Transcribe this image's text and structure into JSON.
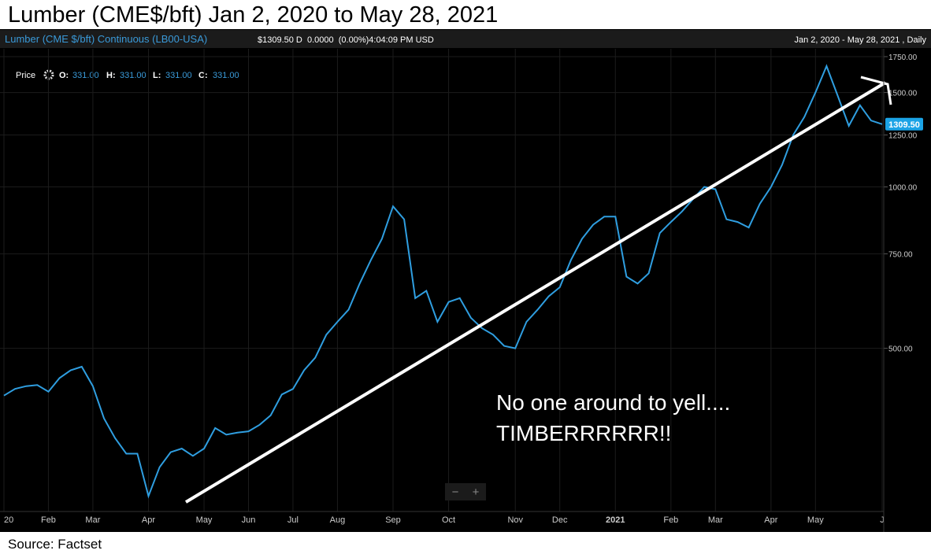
{
  "chart_data": {
    "type": "line",
    "title": "Lumber (CME$/bft) Jan 2, 2020 to May 28, 2021",
    "header_price": "$1309.50 D  0.0000  (0.00%)4:04:09 PM USD",
    "date_range": "Jan 2, 2020 - May 28, 2021 , Daily",
    "ohlc": {
      "label": "Price",
      "open_label": "O:",
      "open": "331.00",
      "high_label": "H:",
      "high": "331.00",
      "low_label": "L:",
      "low": "331.00",
      "close_label": "C:",
      "close": "331.00"
    },
    "annotation": [
      "No one around to yell....",
      "TIMBERRRRRR!!"
    ],
    "zoom": [
      "−",
      "+"
    ],
    "source": "Source: Factset",
    "last_price_label": "1309.50",
    "log_scale": true,
    "grid": true,
    "categories": [
      "20",
      null,
      null,
      null,
      "Feb",
      null,
      null,
      null,
      "Mar",
      null,
      null,
      null,
      null,
      "Apr",
      null,
      null,
      null,
      null,
      "May",
      null,
      null,
      null,
      "Jun",
      null,
      null,
      null,
      "Jul",
      null,
      null,
      null,
      "Aug",
      null,
      null,
      null,
      null,
      "Sep",
      null,
      null,
      null,
      null,
      "Oct",
      null,
      null,
      null,
      null,
      null,
      "Nov",
      null,
      null,
      null,
      "Dec",
      null,
      null,
      null,
      null,
      "2021",
      null,
      null,
      null,
      null,
      "Feb",
      null,
      null,
      null,
      "Mar",
      null,
      null,
      null,
      null,
      "Apr",
      null,
      null,
      null,
      "May",
      null,
      null,
      null,
      null,
      null,
      "J"
    ],
    "series": [
      {
        "name": "Lumber (CME $/bft) Continuous (LB00-USA)",
        "color": "#2f9ee0",
        "values": [
          408,
          420,
          425,
          427,
          415,
          440,
          455,
          462,
          425,
          370,
          340,
          318,
          318,
          265,
          300,
          320,
          325,
          315,
          325,
          355,
          345,
          348,
          350,
          360,
          375,
          410,
          420,
          455,
          480,
          530,
          560,
          590,
          660,
          730,
          800,
          920,
          870,
          620,
          640,
          560,
          610,
          620,
          570,
          545,
          530,
          505,
          500,
          560,
          590,
          625,
          650,
          730,
          800,
          850,
          880,
          880,
          680,
          660,
          690,
          820,
          860,
          900,
          950,
          1000,
          990,
          870,
          860,
          840,
          930,
          1000,
          1100,
          1250,
          1350,
          1500,
          1680,
          1480,
          1300,
          1420,
          1330,
          1309.5
        ]
      }
    ],
    "ylim": [
      248,
      1810
    ],
    "yticks": [
      {
        "value": 500,
        "label": "500.00"
      },
      {
        "value": 750,
        "label": "750.00"
      },
      {
        "value": 1000,
        "label": "1000.00"
      },
      {
        "value": 1250,
        "label": "1250.00"
      },
      {
        "value": 1500,
        "label": "1500.00"
      },
      {
        "value": 1750,
        "label": "1750.00"
      }
    ]
  }
}
